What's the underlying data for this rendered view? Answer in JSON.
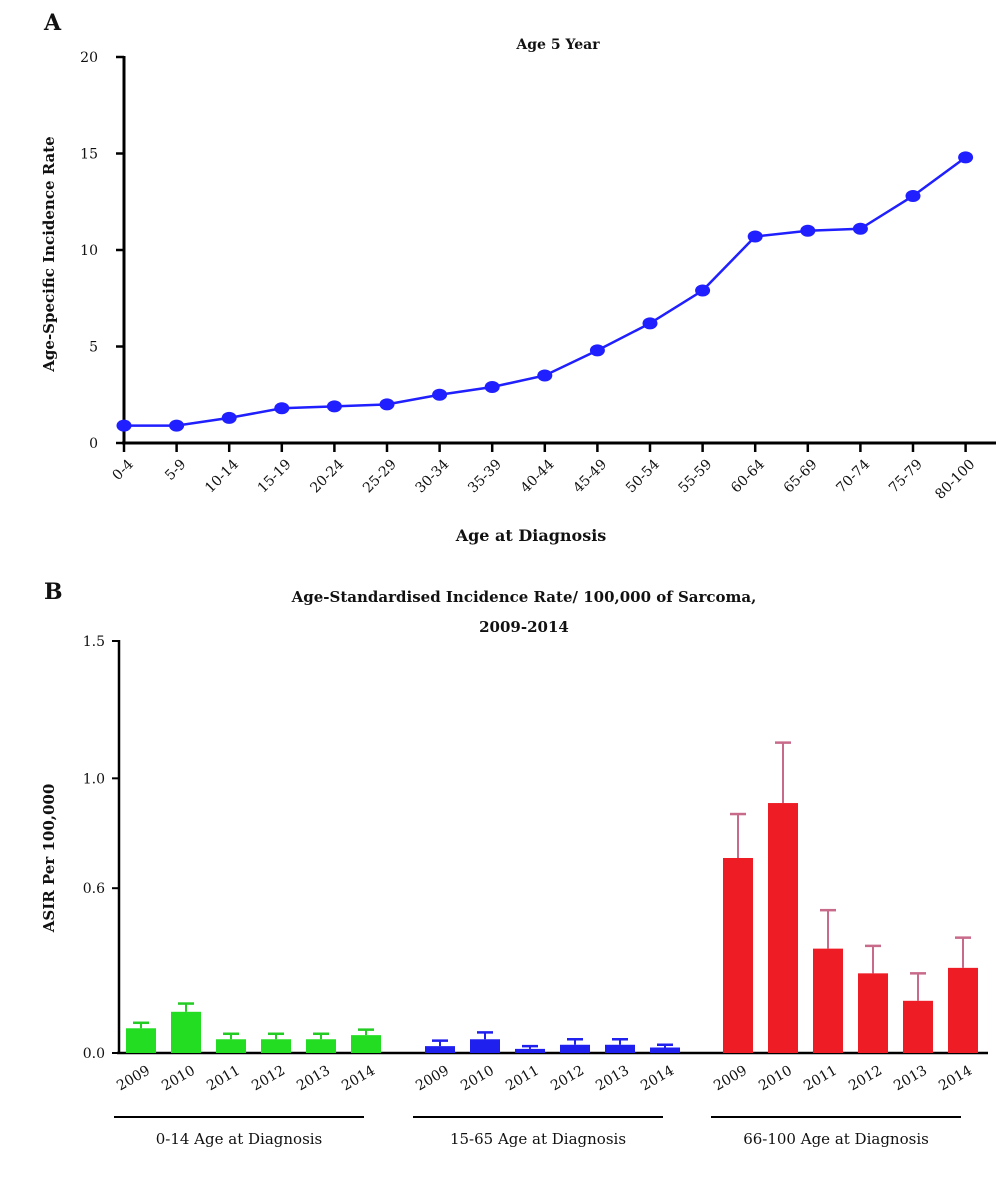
{
  "chart_data": [
    {
      "type": "line",
      "panel": "A",
      "title": "Age 5 Year",
      "xlabel": "Age at Diagnosis",
      "ylabel": "Age-Specific Incidence Rate",
      "categories": [
        "0-4",
        "5-9",
        "10-14",
        "15-19",
        "20-24",
        "25-29",
        "30-34",
        "35-39",
        "40-44",
        "45-49",
        "50-54",
        "55-59",
        "60-64",
        "65-69",
        "70-74",
        "75-79",
        "80-100"
      ],
      "series": [
        {
          "name": "Age-Specific Incidence Rate",
          "color": "#1f1fff",
          "values": [
            0.9,
            0.9,
            1.3,
            1.8,
            1.9,
            2.0,
            2.5,
            2.9,
            3.5,
            4.8,
            6.2,
            7.9,
            10.7,
            11.0,
            11.1,
            12.8,
            14.8
          ]
        }
      ],
      "ylim": [
        0,
        20
      ],
      "yticks": [
        0,
        5,
        10,
        15,
        20
      ]
    },
    {
      "type": "bar",
      "panel": "B",
      "title": "Age-Standardised Incidence Rate/ 100,000 of Sarcoma,",
      "subtitle": "2009-2014",
      "ylabel": "ASIR Per 100,000",
      "categories": [
        "2009",
        "2010",
        "2011",
        "2012",
        "2013",
        "2014"
      ],
      "series": [
        {
          "name": "0-14 Age at Diagnosis",
          "color": "#22dd22",
          "error_color": "#22cc22",
          "values": [
            0.09,
            0.15,
            0.05,
            0.05,
            0.05,
            0.065
          ],
          "errors": [
            0.02,
            0.03,
            0.02,
            0.02,
            0.02,
            0.02
          ]
        },
        {
          "name": "15-65 Age at Diagnosis",
          "color": "#1f1fee",
          "error_color": "#1f1fee",
          "values": [
            0.025,
            0.05,
            0.015,
            0.03,
            0.03,
            0.02
          ],
          "errors": [
            0.02,
            0.025,
            0.01,
            0.02,
            0.02,
            0.01
          ]
        },
        {
          "name": "66-100 Age at Diagnosis",
          "color": "#ee1c24",
          "error_color": "#c86a8a",
          "values": [
            0.71,
            0.91,
            0.38,
            0.29,
            0.19,
            0.31
          ],
          "errors": [
            0.16,
            0.22,
            0.14,
            0.1,
            0.1,
            0.11
          ]
        }
      ],
      "ylim": [
        0,
        1.5
      ],
      "yticks": [
        {
          "value": 0,
          "label": "0.0"
        },
        0.6,
        {
          "value": 1,
          "label": "1.0"
        },
        1.5
      ]
    }
  ]
}
